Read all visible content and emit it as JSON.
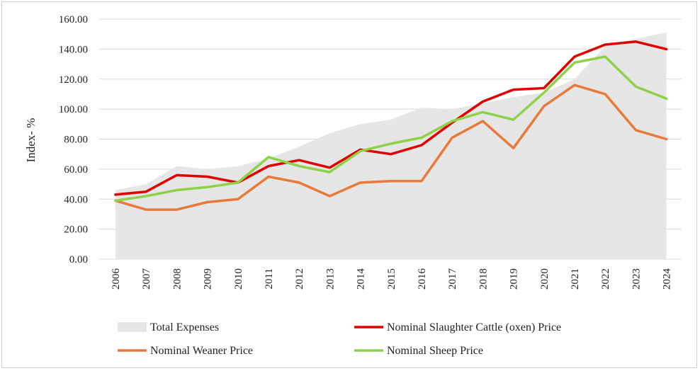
{
  "chart_data": {
    "type": "line",
    "title": "",
    "xlabel": "",
    "ylabel": "Index- %",
    "ylim": [
      0,
      160
    ],
    "ytick_step": 20,
    "ytick_labels": [
      "0.00",
      "20.00",
      "40.00",
      "60.00",
      "80.00",
      "100.00",
      "120.00",
      "140.00",
      "160.00"
    ],
    "grid": true,
    "legend_position": "bottom",
    "categories": [
      "2006",
      "2007",
      "2008",
      "2009",
      "2010",
      "2011",
      "2012",
      "2013",
      "2014",
      "2015",
      "2016",
      "2017",
      "2018",
      "2019",
      "2020",
      "2021",
      "2022",
      "2023",
      "2024"
    ],
    "series": [
      {
        "name": "Total Expenses",
        "style": "area",
        "color": "#e6e6e6",
        "values": [
          46,
          50,
          62,
          60,
          62,
          67,
          75,
          84,
          90,
          93,
          101,
          100,
          104,
          108,
          111,
          120,
          142,
          147,
          151
        ]
      },
      {
        "name": "Nominal Slaughter Cattle (oxen) Price",
        "style": "line",
        "color": "#e00000",
        "values": [
          43,
          45,
          56,
          55,
          51,
          62,
          66,
          61,
          73,
          70,
          76,
          91,
          105,
          113,
          114,
          135,
          143,
          145,
          140
        ]
      },
      {
        "name": "Nominal  Weaner Price",
        "style": "line",
        "color": "#e87a3a",
        "values": [
          39,
          33,
          33,
          38,
          40,
          55,
          51,
          42,
          51,
          52,
          52,
          81,
          92,
          74,
          102,
          116,
          110,
          86,
          80
        ]
      },
      {
        "name": "Nominal Sheep Price",
        "style": "line",
        "color": "#8ed24a",
        "values": [
          39,
          42,
          46,
          48,
          51,
          68,
          62,
          58,
          72,
          77,
          81,
          92,
          98,
          93,
          111,
          131,
          135,
          115,
          107
        ]
      }
    ]
  }
}
